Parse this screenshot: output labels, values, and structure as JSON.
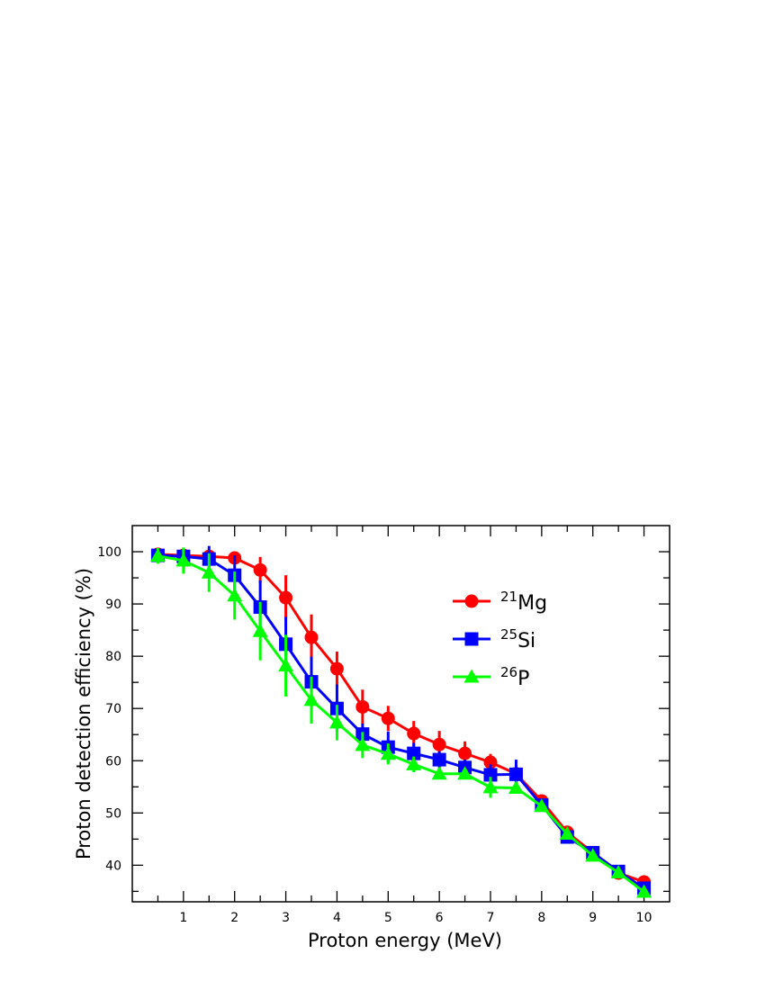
{
  "chart_data": {
    "type": "line",
    "xlabel": "Proton energy (MeV)",
    "ylabel": "Proton detection efficiency (%)",
    "xlim": [
      0,
      10.5
    ],
    "ylim": [
      33,
      105
    ],
    "x_ticks": [
      1,
      2,
      3,
      4,
      5,
      6,
      7,
      8,
      9,
      10
    ],
    "y_ticks": [
      40,
      50,
      60,
      70,
      80,
      90,
      100
    ],
    "grid": false,
    "legend_position": "upper-right",
    "series": [
      {
        "mass": "21",
        "element": "Mg",
        "color": "#ff0000",
        "marker": "circle",
        "x": [
          0.5,
          1.0,
          1.5,
          2.0,
          2.5,
          3.0,
          3.5,
          4.0,
          4.5,
          5.0,
          5.5,
          6.0,
          6.5,
          7.0,
          7.5,
          8.0,
          8.5,
          9.0,
          9.5,
          10.0
        ],
        "y": [
          99.5,
          99.3,
          99.1,
          98.8,
          96.5,
          91.2,
          83.6,
          77.6,
          70.3,
          68.1,
          65.2,
          63.1,
          61.4,
          59.7,
          57.5,
          52.3,
          46.3,
          42.4,
          38.5,
          36.8
        ],
        "err": [
          0.5,
          0.7,
          0.9,
          1.2,
          2.5,
          4.3,
          4.4,
          3.3,
          3.3,
          2.4,
          2.4,
          2.6,
          2.3,
          1.6,
          1.5,
          0.8,
          0.8,
          0.7,
          0.6,
          0.8
        ]
      },
      {
        "mass": "25",
        "element": "Si",
        "color": "#0000ff",
        "marker": "square",
        "x": [
          0.5,
          1.0,
          1.5,
          2.0,
          2.5,
          3.0,
          3.5,
          4.0,
          4.5,
          5.0,
          5.5,
          6.0,
          6.5,
          7.0,
          7.5,
          8.0,
          8.5,
          9.0,
          9.5,
          10.0
        ],
        "y": [
          99.3,
          99.1,
          98.6,
          95.5,
          89.4,
          82.3,
          75.1,
          70.0,
          65.1,
          62.6,
          61.4,
          60.2,
          58.7,
          57.3,
          57.4,
          51.5,
          45.4,
          42.4,
          38.8,
          35.6
        ],
        "err": [
          0.7,
          1.0,
          2.5,
          3.8,
          5.1,
          5.2,
          4.8,
          4.6,
          2.0,
          3.0,
          2.0,
          1.6,
          1.5,
          2.0,
          2.8,
          0.8,
          0.8,
          0.8,
          0.6,
          0.8
        ]
      },
      {
        "mass": "26",
        "element": "P",
        "color": "#00ff00",
        "marker": "triangle",
        "x": [
          0.5,
          1.0,
          1.5,
          2.0,
          2.5,
          3.0,
          3.5,
          4.0,
          4.5,
          5.0,
          5.5,
          6.0,
          6.5,
          7.0,
          7.5,
          8.0,
          8.5,
          9.0,
          9.5,
          10.0
        ],
        "y": [
          99.2,
          98.3,
          96.0,
          91.6,
          84.8,
          78.2,
          71.6,
          67.3,
          63.0,
          61.3,
          59.3,
          57.5,
          57.5,
          54.9,
          54.8,
          51.3,
          46.0,
          41.8,
          38.6,
          34.9
        ],
        "err": [
          1.5,
          2.5,
          3.7,
          4.6,
          5.6,
          5.9,
          4.5,
          3.4,
          2.5,
          2.0,
          1.5,
          1.0,
          1.0,
          2.0,
          1.0,
          0.8,
          0.8,
          0.8,
          0.6,
          0.8
        ]
      }
    ]
  }
}
